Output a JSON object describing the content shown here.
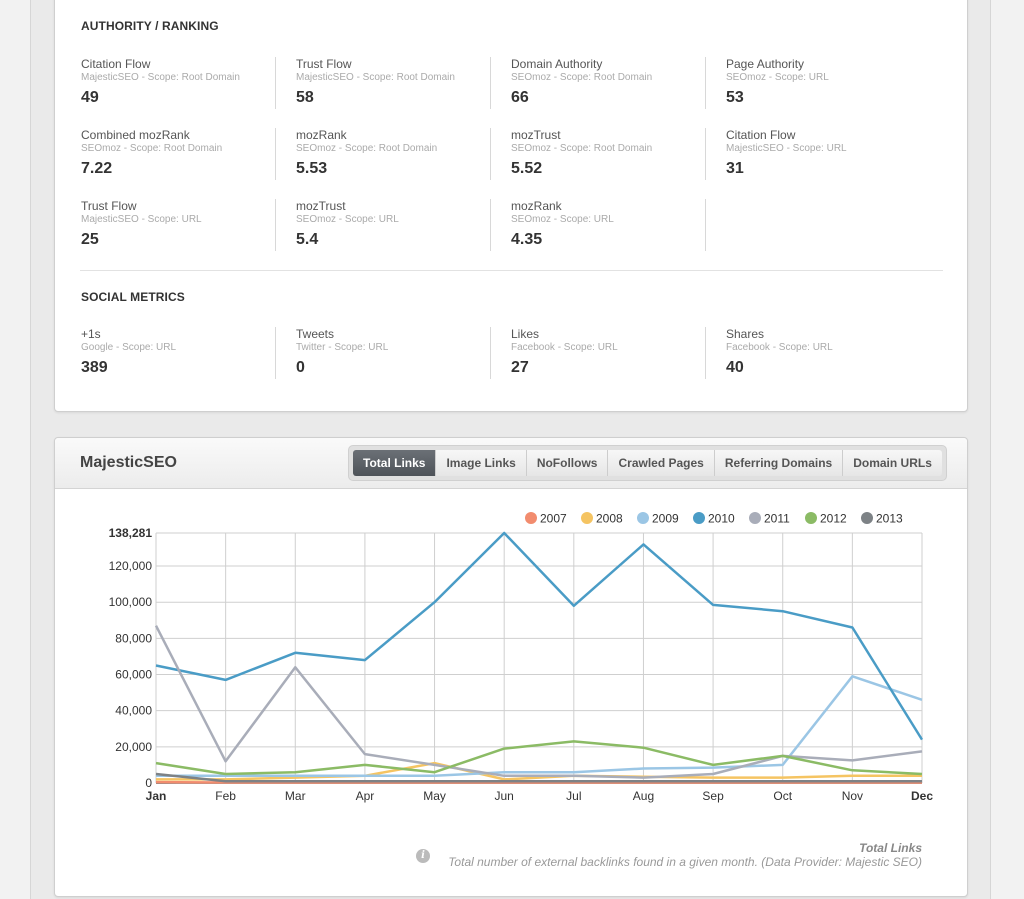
{
  "authority": {
    "title": "AUTHORITY / RANKING",
    "metrics": [
      {
        "name": "Citation Flow",
        "scope": "MajesticSEO - Scope: Root Domain",
        "value": "49"
      },
      {
        "name": "Trust Flow",
        "scope": "MajesticSEO - Scope: Root Domain",
        "value": "58"
      },
      {
        "name": "Domain Authority",
        "scope": "SEOmoz - Scope: Root Domain",
        "value": "66"
      },
      {
        "name": "Page Authority",
        "scope": "SEOmoz - Scope: URL",
        "value": "53"
      },
      {
        "name": "Combined mozRank",
        "scope": "SEOmoz - Scope: Root Domain",
        "value": "7.22"
      },
      {
        "name": "mozRank",
        "scope": "SEOmoz - Scope: Root Domain",
        "value": "5.53"
      },
      {
        "name": "mozTrust",
        "scope": "SEOmoz - Scope: Root Domain",
        "value": "5.52"
      },
      {
        "name": "Citation Flow",
        "scope": "MajesticSEO - Scope: URL",
        "value": "31"
      },
      {
        "name": "Trust Flow",
        "scope": "MajesticSEO - Scope: URL",
        "value": "25"
      },
      {
        "name": "mozTrust",
        "scope": "SEOmoz - Scope: URL",
        "value": "5.4"
      },
      {
        "name": "mozRank",
        "scope": "SEOmoz - Scope: URL",
        "value": "4.35"
      }
    ]
  },
  "social": {
    "title": "SOCIAL METRICS",
    "metrics": [
      {
        "name": "+1s",
        "scope": "Google - Scope: URL",
        "value": "389"
      },
      {
        "name": "Tweets",
        "scope": "Twitter - Scope: URL",
        "value": "0"
      },
      {
        "name": "Likes",
        "scope": "Facebook - Scope: URL",
        "value": "27"
      },
      {
        "name": "Shares",
        "scope": "Facebook - Scope: URL",
        "value": "40"
      }
    ]
  },
  "majestic": {
    "title": "MajesticSEO",
    "tabs": [
      "Total Links",
      "Image Links",
      "NoFollows",
      "Crawled Pages",
      "Referring Domains",
      "Domain URLs"
    ],
    "active_tab": "Total Links",
    "footnote_title": "Total Links",
    "footnote_text": "Total number of external backlinks found in a given month. (Data Provider: Majestic SEO)",
    "info_icon_glyph": "i"
  },
  "chart_data": {
    "type": "line",
    "title": "Total Links",
    "categories": [
      "Jan",
      "Feb",
      "Mar",
      "Apr",
      "May",
      "Jun",
      "Jul",
      "Aug",
      "Sep",
      "Oct",
      "Nov",
      "Dec"
    ],
    "ylim": [
      0,
      138281
    ],
    "yticks": [
      0,
      20000,
      40000,
      60000,
      80000,
      100000,
      120000,
      138281
    ],
    "ytick_labels": [
      "0",
      "20,000",
      "40,000",
      "60,000",
      "80,000",
      "100,000",
      "120,000",
      "138,281"
    ],
    "legend_position": "top-right",
    "series": [
      {
        "name": "2007",
        "color": "#f28c6e",
        "values": [
          500,
          300,
          300,
          300,
          300,
          300,
          300,
          300,
          300,
          300,
          300,
          300
        ]
      },
      {
        "name": "2008",
        "color": "#f5c462",
        "values": [
          2000,
          2000,
          3000,
          4000,
          11000,
          2000,
          4000,
          3500,
          3000,
          3000,
          4000,
          4000
        ]
      },
      {
        "name": "2009",
        "color": "#9bc6e5",
        "values": [
          4000,
          4000,
          4000,
          4000,
          4000,
          6000,
          6000,
          8000,
          8500,
          10000,
          59000,
          46000
        ]
      },
      {
        "name": "2010",
        "color": "#4a9cc6",
        "values": [
          65000,
          57000,
          72000,
          68000,
          100000,
          138281,
          98000,
          132000,
          98500,
          95000,
          86000,
          24000
        ]
      },
      {
        "name": "2011",
        "color": "#a9adb9",
        "values": [
          87000,
          12000,
          64000,
          16000,
          10000,
          4000,
          4000,
          3000,
          5000,
          15000,
          12500,
          17500
        ]
      },
      {
        "name": "2012",
        "color": "#8bbb65",
        "values": [
          11000,
          5000,
          6000,
          10000,
          6000,
          19000,
          23000,
          19500,
          10000,
          15000,
          7000,
          5000
        ]
      },
      {
        "name": "2013",
        "color": "#7d8286",
        "values": [
          5000,
          1000,
          1000,
          1000,
          1000,
          1000,
          1000,
          1000,
          1000,
          1000,
          1000,
          1000
        ]
      }
    ]
  }
}
